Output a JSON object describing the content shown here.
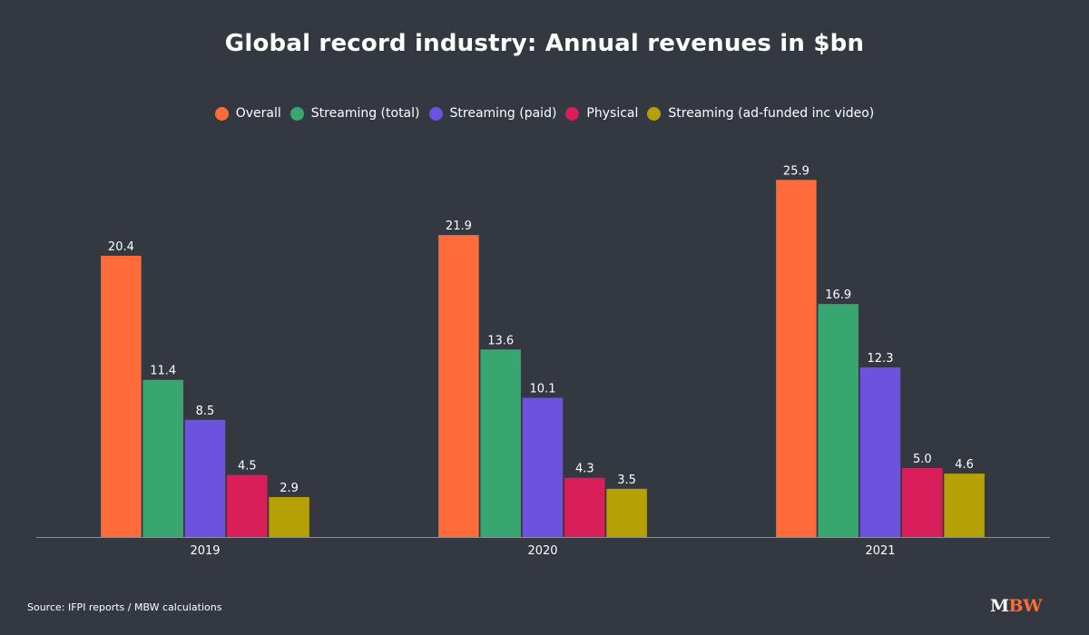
{
  "title": "Global record industry: Annual revenues in $bn",
  "source": "Source: IFPI reports / MBW calculations",
  "logo": {
    "m": "M",
    "bw": "BW"
  },
  "chart_data": {
    "type": "bar",
    "title": "Global record industry: Annual revenues in $bn",
    "categories": [
      "2019",
      "2020",
      "2021"
    ],
    "series": [
      {
        "name": "Overall",
        "color": "#ff6b3a",
        "values": [
          20.4,
          21.9,
          25.9
        ]
      },
      {
        "name": "Streaming (total)",
        "color": "#38a66f",
        "values": [
          11.4,
          13.6,
          16.9
        ]
      },
      {
        "name": "Streaming (paid)",
        "color": "#6c52dd",
        "values": [
          8.5,
          10.1,
          12.3
        ]
      },
      {
        "name": "Physical",
        "color": "#d81f5a",
        "values": [
          4.5,
          4.3,
          5.0
        ]
      },
      {
        "name": "Streaming (ad-funded inc video)",
        "color": "#b5a106",
        "values": [
          2.9,
          3.5,
          4.6
        ]
      }
    ],
    "ylim": [
      0,
      26
    ],
    "grid": false,
    "legend": "top"
  }
}
